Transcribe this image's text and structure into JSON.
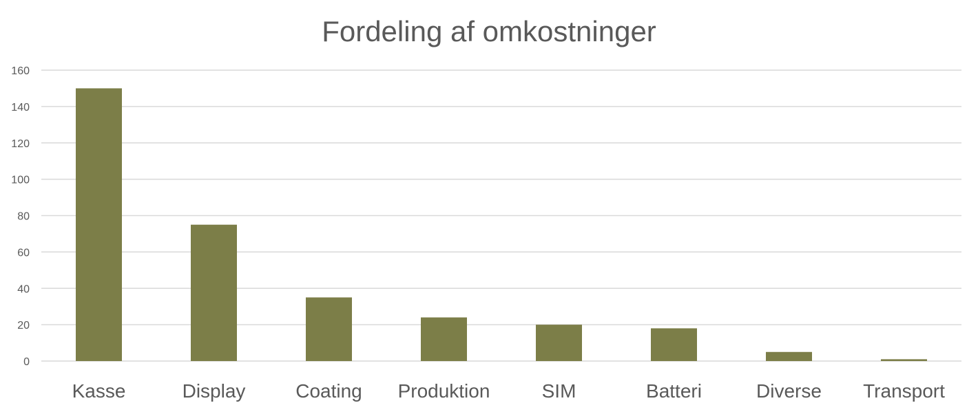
{
  "chart_data": {
    "type": "bar",
    "title": "Fordeling af omkostninger",
    "xlabel": "",
    "ylabel": "",
    "categories": [
      "Kasse",
      "Display",
      "Coating",
      "Produktion",
      "SIM",
      "Batteri",
      "Diverse",
      "Transport"
    ],
    "series": [
      {
        "values": [
          150,
          75,
          35,
          24,
          20,
          18,
          5,
          1
        ]
      }
    ],
    "ylim": [
      0,
      160
    ],
    "yticks": [
      0,
      20,
      40,
      60,
      80,
      100,
      120,
      140,
      160
    ],
    "grid": true,
    "legend": "none",
    "bar_color": "#7c7e48"
  }
}
